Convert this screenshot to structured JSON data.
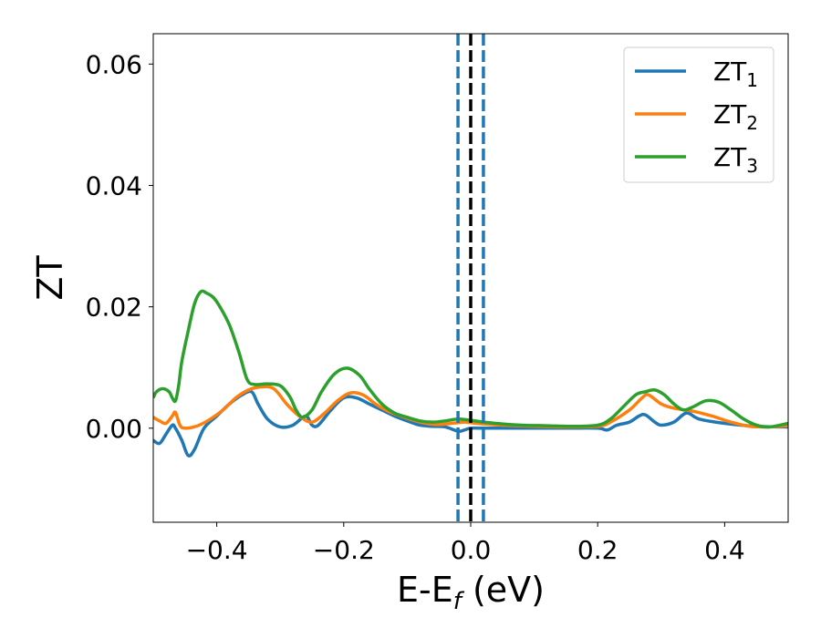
{
  "chart_data": {
    "type": "line",
    "xlabel": "E-E_f (eV)",
    "ylabel": "ZT",
    "xlim": [
      -0.5,
      0.5
    ],
    "ylim": [
      -0.0155,
      0.065
    ],
    "x_ticks": [
      -0.4,
      -0.2,
      0.0,
      0.2,
      0.4
    ],
    "x_tick_labels": [
      "−0.4",
      "−0.2",
      "0.0",
      "0.2",
      "0.4"
    ],
    "y_ticks": [
      0.0,
      0.02,
      0.04,
      0.06
    ],
    "y_tick_labels": [
      "0.00",
      "0.02",
      "0.04",
      "0.06"
    ],
    "grid": false,
    "legend_position": "top-right",
    "series": [
      {
        "name": "ZT",
        "subscript": "1",
        "color": "#1f77b4",
        "points": [
          [
            -0.5,
            -0.002
          ],
          [
            -0.49,
            -0.0025
          ],
          [
            -0.48,
            -0.001
          ],
          [
            -0.47,
            0.0005
          ],
          [
            -0.465,
            0.0
          ],
          [
            -0.455,
            -0.002
          ],
          [
            -0.445,
            -0.0045
          ],
          [
            -0.435,
            -0.0035
          ],
          [
            -0.42,
            0.0
          ],
          [
            -0.4,
            0.002
          ],
          [
            -0.38,
            0.004
          ],
          [
            -0.36,
            0.0055
          ],
          [
            -0.345,
            0.006
          ],
          [
            -0.335,
            0.004
          ],
          [
            -0.32,
            0.0015
          ],
          [
            -0.3,
            0.0002
          ],
          [
            -0.28,
            0.0005
          ],
          [
            -0.26,
            0.002
          ],
          [
            -0.25,
            0.0005
          ],
          [
            -0.24,
            0.0005
          ],
          [
            -0.22,
            0.003
          ],
          [
            -0.2,
            0.005
          ],
          [
            -0.18,
            0.005
          ],
          [
            -0.16,
            0.004
          ],
          [
            -0.14,
            0.003
          ],
          [
            -0.12,
            0.002
          ],
          [
            -0.1,
            0.0012
          ],
          [
            -0.08,
            0.0005
          ],
          [
            -0.06,
            0.0003
          ],
          [
            -0.04,
            0.0002
          ],
          [
            -0.02,
            -0.0005
          ],
          [
            -0.01,
            -0.0003
          ],
          [
            0.0,
            0.0
          ],
          [
            0.02,
            0.0
          ],
          [
            0.05,
            0.0
          ],
          [
            0.1,
            0.0
          ],
          [
            0.15,
            0.0
          ],
          [
            0.2,
            0.0
          ],
          [
            0.215,
            -0.0003
          ],
          [
            0.23,
            0.0005
          ],
          [
            0.25,
            0.001
          ],
          [
            0.265,
            0.002
          ],
          [
            0.275,
            0.0022
          ],
          [
            0.29,
            0.001
          ],
          [
            0.3,
            0.0005
          ],
          [
            0.32,
            0.001
          ],
          [
            0.34,
            0.0025
          ],
          [
            0.36,
            0.0015
          ],
          [
            0.4,
            0.0008
          ],
          [
            0.45,
            0.0003
          ],
          [
            0.5,
            0.0002
          ]
        ]
      },
      {
        "name": "ZT",
        "subscript": "2",
        "color": "#ff7f0e",
        "points": [
          [
            -0.5,
            0.0018
          ],
          [
            -0.49,
            0.0012
          ],
          [
            -0.48,
            0.0008
          ],
          [
            -0.47,
            0.002
          ],
          [
            -0.465,
            0.0026
          ],
          [
            -0.458,
            0.0005
          ],
          [
            -0.45,
            0.0
          ],
          [
            -0.43,
            0.0004
          ],
          [
            -0.41,
            0.0015
          ],
          [
            -0.39,
            0.003
          ],
          [
            -0.37,
            0.005
          ],
          [
            -0.35,
            0.0063
          ],
          [
            -0.33,
            0.0068
          ],
          [
            -0.31,
            0.0065
          ],
          [
            -0.29,
            0.004
          ],
          [
            -0.27,
            0.002
          ],
          [
            -0.25,
            0.001
          ],
          [
            -0.23,
            0.0025
          ],
          [
            -0.21,
            0.0045
          ],
          [
            -0.19,
            0.0058
          ],
          [
            -0.17,
            0.0055
          ],
          [
            -0.15,
            0.004
          ],
          [
            -0.13,
            0.0028
          ],
          [
            -0.11,
            0.002
          ],
          [
            -0.09,
            0.0013
          ],
          [
            -0.07,
            0.0008
          ],
          [
            -0.05,
            0.0006
          ],
          [
            -0.03,
            0.0008
          ],
          [
            -0.01,
            0.001
          ],
          [
            0.0,
            0.0009
          ],
          [
            0.02,
            0.0007
          ],
          [
            0.05,
            0.0005
          ],
          [
            0.1,
            0.0003
          ],
          [
            0.15,
            0.0002
          ],
          [
            0.2,
            0.0003
          ],
          [
            0.22,
            0.001
          ],
          [
            0.25,
            0.003
          ],
          [
            0.27,
            0.005
          ],
          [
            0.28,
            0.0055
          ],
          [
            0.3,
            0.004
          ],
          [
            0.32,
            0.0033
          ],
          [
            0.35,
            0.0028
          ],
          [
            0.38,
            0.002
          ],
          [
            0.41,
            0.001
          ],
          [
            0.44,
            0.0003
          ],
          [
            0.47,
            0.0002
          ],
          [
            0.5,
            0.0004
          ]
        ]
      },
      {
        "name": "ZT",
        "subscript": "3",
        "color": "#2ca02c",
        "points": [
          [
            -0.5,
            0.005
          ],
          [
            -0.495,
            0.006
          ],
          [
            -0.485,
            0.0065
          ],
          [
            -0.475,
            0.006
          ],
          [
            -0.47,
            0.005
          ],
          [
            -0.465,
            0.0045
          ],
          [
            -0.46,
            0.007
          ],
          [
            -0.455,
            0.011
          ],
          [
            -0.445,
            0.016
          ],
          [
            -0.435,
            0.0205
          ],
          [
            -0.425,
            0.0225
          ],
          [
            -0.415,
            0.0222
          ],
          [
            -0.405,
            0.0215
          ],
          [
            -0.395,
            0.02
          ],
          [
            -0.38,
            0.017
          ],
          [
            -0.365,
            0.0125
          ],
          [
            -0.352,
            0.008
          ],
          [
            -0.34,
            0.0072
          ],
          [
            -0.32,
            0.0073
          ],
          [
            -0.3,
            0.007
          ],
          [
            -0.285,
            0.0052
          ],
          [
            -0.275,
            0.003
          ],
          [
            -0.265,
            0.0018
          ],
          [
            -0.25,
            0.003
          ],
          [
            -0.235,
            0.006
          ],
          [
            -0.215,
            0.0089
          ],
          [
            -0.195,
            0.0099
          ],
          [
            -0.175,
            0.0087
          ],
          [
            -0.16,
            0.0065
          ],
          [
            -0.14,
            0.004
          ],
          [
            -0.12,
            0.0025
          ],
          [
            -0.1,
            0.0018
          ],
          [
            -0.08,
            0.0012
          ],
          [
            -0.06,
            0.001
          ],
          [
            -0.04,
            0.0012
          ],
          [
            -0.02,
            0.0015
          ],
          [
            0.0,
            0.0013
          ],
          [
            0.02,
            0.001
          ],
          [
            0.05,
            0.0007
          ],
          [
            0.08,
            0.0005
          ],
          [
            0.12,
            0.0004
          ],
          [
            0.16,
            0.0003
          ],
          [
            0.2,
            0.0005
          ],
          [
            0.22,
            0.0015
          ],
          [
            0.24,
            0.0035
          ],
          [
            0.26,
            0.0055
          ],
          [
            0.275,
            0.006
          ],
          [
            0.29,
            0.0063
          ],
          [
            0.305,
            0.0055
          ],
          [
            0.32,
            0.004
          ],
          [
            0.335,
            0.003
          ],
          [
            0.35,
            0.0035
          ],
          [
            0.37,
            0.0045
          ],
          [
            0.39,
            0.0043
          ],
          [
            0.41,
            0.003
          ],
          [
            0.43,
            0.0015
          ],
          [
            0.45,
            0.0005
          ],
          [
            0.47,
            0.0002
          ],
          [
            0.5,
            0.0008
          ]
        ]
      }
    ],
    "vertical_lines": [
      {
        "x": -0.02,
        "color": "#1f77b4",
        "style": "dashed"
      },
      {
        "x": 0.0,
        "color": "#000000",
        "style": "dashed"
      },
      {
        "x": 0.02,
        "color": "#1f77b4",
        "style": "dashed"
      }
    ]
  }
}
